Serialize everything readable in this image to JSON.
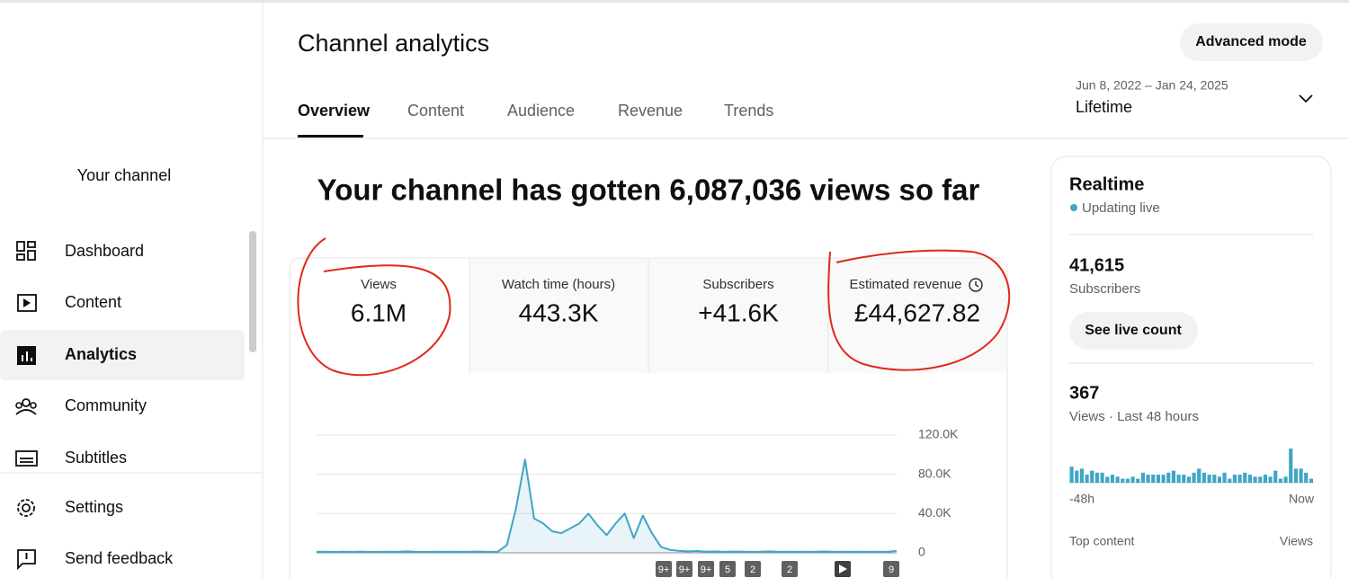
{
  "header": {
    "title": "Channel analytics",
    "advanced_button": "Advanced mode",
    "tabs": [
      "Overview",
      "Content",
      "Audience",
      "Revenue",
      "Trends"
    ],
    "date_range": "Jun 8, 2022 – Jan 24, 2025",
    "period": "Lifetime"
  },
  "sidebar": {
    "channel": "Your channel",
    "items": [
      "Dashboard",
      "Content",
      "Analytics",
      "Community",
      "Subtitles"
    ],
    "footer_items": [
      "Settings",
      "Send feedback"
    ]
  },
  "headline": "Your channel has gotten 6,087,036 views so far",
  "metrics": [
    {
      "label": "Views",
      "value": "6.1M"
    },
    {
      "label": "Watch time (hours)",
      "value": "443.3K"
    },
    {
      "label": "Subscribers",
      "value": "+41.6K"
    },
    {
      "label": "Estimated revenue",
      "value": "£44,627.82"
    }
  ],
  "views_chart": {
    "type": "area",
    "color": "#3ea6c6",
    "values": [
      1000,
      1200,
      900,
      1100,
      1000,
      1300,
      900,
      1000,
      1200,
      1000,
      1500,
      1000,
      900,
      1100,
      1000,
      1200,
      1000,
      1100,
      1300,
      1000,
      1200,
      8000,
      45000,
      95000,
      35000,
      30000,
      22000,
      20000,
      25000,
      30000,
      40000,
      28000,
      18000,
      30000,
      40000,
      15000,
      38000,
      20000,
      6000,
      3000,
      2000,
      1500,
      1800,
      1200,
      1500,
      1000,
      1300,
      1200,
      1000,
      1100,
      1500,
      1000,
      1200,
      1000,
      1100,
      1000,
      1400,
      1000,
      1100,
      1000,
      1200,
      1000,
      1100,
      1000,
      2000
    ],
    "ylim": [
      0,
      120000
    ],
    "yticks": [
      0,
      {
        "value": 40000,
        "label": "40.0K"
      },
      {
        "value": 80000,
        "label": "80.0K"
      },
      {
        "value": 120000,
        "label": "120.0K"
      }
    ],
    "grid": true,
    "markers": [
      "9+",
      "9+",
      "9+",
      "5",
      "2",
      "2",
      "9"
    ]
  },
  "realtime": {
    "title": "Realtime",
    "status": "Updating live",
    "subscribers": "41,615",
    "subscribers_label": "Subscribers",
    "button": "See live count",
    "views": "367",
    "views_label": "Views · Last 48 hours",
    "start_label": "-48h",
    "end_label": "Now",
    "top_content": "Top content",
    "top_content_metric": "Views",
    "bars": [
      8,
      6,
      7,
      4,
      6,
      5,
      5,
      3,
      4,
      3,
      2,
      2,
      3,
      2,
      5,
      4,
      4,
      4,
      4,
      5,
      6,
      4,
      4,
      3,
      5,
      7,
      5,
      4,
      4,
      3,
      5,
      2,
      4,
      4,
      5,
      4,
      3,
      3,
      4,
      3,
      6,
      2,
      3,
      17,
      7,
      7,
      5,
      2
    ],
    "color": "#3ea6c6"
  }
}
